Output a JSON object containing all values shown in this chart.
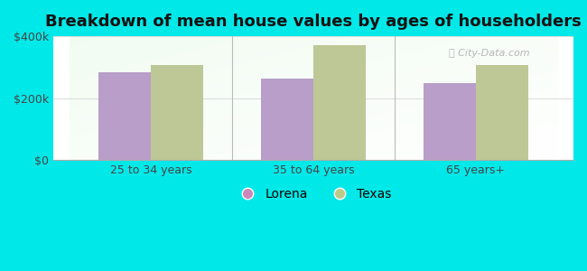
{
  "title": "Breakdown of mean house values by ages of householders",
  "categories": [
    "25 to 34 years",
    "35 to 64 years",
    "65 years+"
  ],
  "lorena_values": [
    283000,
    263000,
    248000
  ],
  "texas_values": [
    308000,
    372000,
    308000
  ],
  "bar_color_lorena": "#b89ec8",
  "bar_color_texas": "#bdc896",
  "background_outer": "#00e8e8",
  "ylim": [
    0,
    400000
  ],
  "yticks": [
    0,
    200000,
    400000
  ],
  "ytick_labels": [
    "$0",
    "$200k",
    "$400k"
  ],
  "legend_lorena": "Lorena",
  "legend_texas": "Texas",
  "legend_color_lorena": "#cc88bb",
  "legend_color_texas": "#bbcc88",
  "title_fontsize": 13,
  "bar_width": 0.32
}
